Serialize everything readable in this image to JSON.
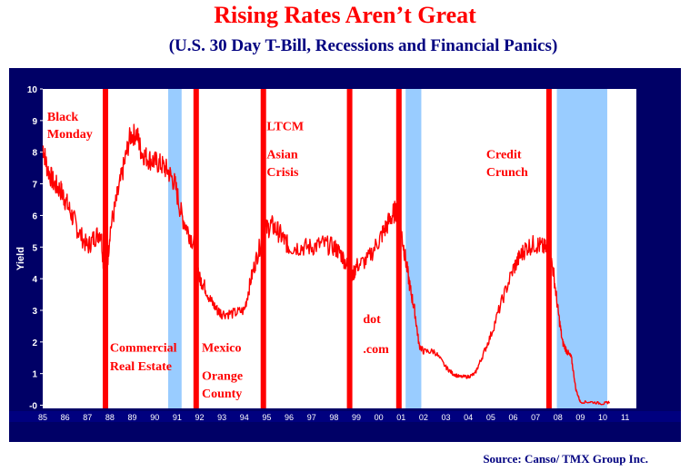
{
  "title": "Rising Rates Aren’t Great",
  "subtitle": "(U.S. 30 Day T-Bill, Recessions and Financial Panics)",
  "source": "Source: Canso/ TMX Group Inc.",
  "colors": {
    "frame": "#000066",
    "plot_bg": "#ffffff",
    "series": "#ff0000",
    "recession": "#99ccff",
    "panic_line": "#ff0000",
    "annotation": "#ff0000",
    "tick_text": "#ffffff"
  },
  "chart_data": {
    "type": "line",
    "ylabel": "Yield",
    "xlabel": "",
    "ylim": [
      -0.1,
      10
    ],
    "xlim": [
      1985,
      2011.5
    ],
    "yticks": [
      -0.0,
      1,
      2,
      3,
      4,
      5,
      6,
      7,
      8,
      9,
      10
    ],
    "ytick_labels": [
      "-0",
      "1",
      "2",
      "3",
      "4",
      "5",
      "6",
      "7",
      "8",
      "9",
      "10"
    ],
    "xticks": [
      1985,
      1986,
      1987,
      1988,
      1989,
      1990,
      1991,
      1992,
      1993,
      1994,
      1995,
      1996,
      1997,
      1998,
      1999,
      2000,
      2001,
      2002,
      2003,
      2004,
      2005,
      2006,
      2007,
      2008,
      2009,
      2010,
      2011
    ],
    "xtick_labels": [
      "85",
      "86",
      "87",
      "88",
      "89",
      "90",
      "91",
      "92",
      "93",
      "94",
      "95",
      "96",
      "97",
      "98",
      "99",
      "00",
      "01",
      "02",
      "03",
      "04",
      "05",
      "06",
      "07",
      "08",
      "09",
      "10",
      "11"
    ],
    "grid": false,
    "series": [
      {
        "x": [
          1985.0,
          1985.2,
          1985.5,
          1985.8,
          1986.0,
          1986.3,
          1986.6,
          1987.0,
          1987.3,
          1987.6,
          1987.8,
          1988.0,
          1988.3,
          1988.6,
          1988.9,
          1989.2,
          1989.4,
          1989.7,
          1990.0,
          1990.3,
          1990.6,
          1990.9,
          1991.2,
          1991.5,
          1991.8,
          1992.0,
          1992.2,
          1992.5,
          1992.8,
          1993.0,
          1993.5,
          1994.0,
          1994.3,
          1994.6,
          1994.9,
          1995.2,
          1995.5,
          1995.8,
          1996.0,
          1996.5,
          1997.0,
          1997.5,
          1998.0,
          1998.3,
          1998.6,
          1998.8,
          1999.0,
          1999.5,
          2000.0,
          2000.3,
          2000.6,
          2000.8,
          2001.0,
          2001.2,
          2001.4,
          2001.6,
          2001.8,
          2002.0,
          2002.5,
          2003.0,
          2003.3,
          2003.6,
          2004.0,
          2004.3,
          2004.6,
          2005.0,
          2005.5,
          2006.0,
          2006.3,
          2006.6,
          2007.0,
          2007.3,
          2007.6,
          2007.8,
          2008.0,
          2008.2,
          2008.4,
          2008.6,
          2008.8,
          2009.0,
          2009.5,
          2010.0,
          2010.3
        ],
        "values": [
          8.2,
          7.5,
          7.0,
          6.8,
          6.5,
          6.0,
          5.5,
          5.0,
          5.3,
          5.5,
          3.6,
          5.5,
          6.5,
          7.5,
          8.5,
          8.6,
          8.0,
          7.8,
          7.7,
          7.6,
          7.4,
          7.0,
          6.0,
          5.5,
          5.0,
          4.0,
          3.8,
          3.3,
          3.0,
          2.9,
          2.9,
          3.0,
          4.0,
          4.8,
          5.5,
          5.7,
          5.5,
          5.2,
          5.0,
          5.0,
          5.0,
          5.1,
          5.0,
          4.8,
          4.4,
          4.0,
          4.4,
          4.6,
          5.2,
          5.6,
          6.0,
          6.2,
          5.5,
          4.6,
          3.7,
          3.0,
          1.9,
          1.7,
          1.7,
          1.2,
          1.0,
          0.9,
          0.9,
          1.0,
          1.5,
          2.2,
          3.3,
          4.3,
          4.7,
          5.0,
          5.1,
          5.0,
          4.9,
          4.2,
          3.0,
          2.0,
          1.7,
          1.5,
          0.5,
          0.1,
          0.1,
          0.05,
          0.1
        ]
      }
    ],
    "recessions": [
      [
        1990.6,
        1991.2
      ],
      [
        2001.2,
        2001.9
      ],
      [
        2007.95,
        2010.2
      ]
    ],
    "panic_lines": [
      1987.8,
      1991.85,
      1994.85,
      1998.7,
      2000.9,
      2007.6
    ],
    "annotations": [
      {
        "text": "Black",
        "x": 1985.2,
        "y": 9.0
      },
      {
        "text": "Monday",
        "x": 1985.2,
        "y": 8.45
      },
      {
        "text": "Commercial",
        "x": 1988.0,
        "y": 1.7
      },
      {
        "text": "Real Estate",
        "x": 1988.0,
        "y": 1.1
      },
      {
        "text": "Mexico",
        "x": 1992.1,
        "y": 1.7
      },
      {
        "text": "Orange",
        "x": 1992.1,
        "y": 0.8
      },
      {
        "text": "County",
        "x": 1992.1,
        "y": 0.25
      },
      {
        "text": "LTCM",
        "x": 1995.0,
        "y": 8.7
      },
      {
        "text": "Asian",
        "x": 1995.0,
        "y": 7.8
      },
      {
        "text": "Crisis",
        "x": 1995.0,
        "y": 7.25
      },
      {
        "text": "dot",
        "x": 1999.3,
        "y": 2.6
      },
      {
        "text": ".com",
        "x": 1999.3,
        "y": 1.65
      },
      {
        "text": "Credit",
        "x": 2004.8,
        "y": 7.8
      },
      {
        "text": "Crunch",
        "x": 2004.8,
        "y": 7.25
      }
    ]
  }
}
